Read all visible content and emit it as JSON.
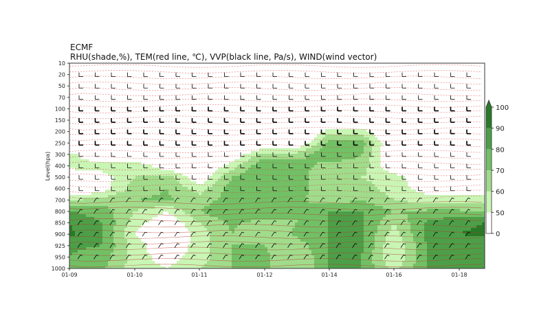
{
  "header": {
    "source": "ECMF",
    "subtitle": "RHU(shade,%), TEM(red line, ℃), VVP(black line, Pa/s), WIND(wind vector)"
  },
  "chart_data": {
    "type": "heatmap",
    "title": "ECMF",
    "subtitle": "RHU(shade,%), TEM(red line, ℃), VVP(black line, Pa/s), WIND(wind vector)",
    "ylabel": "Level(hpa)",
    "xlabel": "",
    "y_levels": [
      10,
      20,
      50,
      70,
      100,
      150,
      200,
      250,
      300,
      400,
      500,
      600,
      700,
      800,
      850,
      900,
      925,
      950,
      1000
    ],
    "y_inverted": true,
    "x_tick_labels": [
      "01-09",
      "01-10",
      "01-11",
      "01-12",
      "01-14",
      "01-16",
      "01-18"
    ],
    "x_columns": [
      "01-09 00",
      "01-09 12",
      "01-10 00",
      "01-10 12",
      "01-11 00",
      "01-11 12",
      "01-12 00",
      "01-13 00",
      "01-14 00",
      "01-15 00",
      "01-16 00",
      "01-17 00",
      "01-18 00",
      "01-18 18"
    ],
    "rhu_percent": [
      [
        20,
        20,
        20,
        20,
        20,
        20,
        20,
        20,
        20,
        20,
        20,
        20,
        20,
        20
      ],
      [
        20,
        20,
        20,
        20,
        20,
        20,
        20,
        20,
        20,
        20,
        20,
        20,
        20,
        20
      ],
      [
        20,
        20,
        20,
        20,
        20,
        20,
        20,
        20,
        20,
        20,
        20,
        20,
        20,
        20
      ],
      [
        20,
        20,
        20,
        20,
        20,
        20,
        20,
        20,
        20,
        20,
        20,
        20,
        20,
        20
      ],
      [
        20,
        20,
        20,
        20,
        20,
        20,
        20,
        20,
        20,
        20,
        20,
        20,
        20,
        20
      ],
      [
        25,
        25,
        25,
        25,
        25,
        25,
        25,
        25,
        30,
        30,
        25,
        25,
        25,
        25
      ],
      [
        25,
        25,
        25,
        25,
        25,
        25,
        25,
        30,
        55,
        55,
        30,
        25,
        25,
        25
      ],
      [
        30,
        30,
        30,
        30,
        30,
        30,
        35,
        35,
        75,
        75,
        35,
        30,
        30,
        30
      ],
      [
        55,
        35,
        30,
        30,
        30,
        40,
        65,
        65,
        80,
        70,
        35,
        30,
        30,
        30
      ],
      [
        55,
        55,
        60,
        40,
        35,
        55,
        80,
        75,
        65,
        65,
        40,
        35,
        30,
        30
      ],
      [
        35,
        45,
        60,
        65,
        40,
        70,
        80,
        75,
        60,
        60,
        55,
        40,
        35,
        35
      ],
      [
        30,
        45,
        65,
        70,
        55,
        75,
        80,
        75,
        60,
        65,
        55,
        45,
        40,
        40
      ],
      [
        60,
        65,
        70,
        72,
        65,
        75,
        80,
        72,
        65,
        70,
        60,
        55,
        55,
        55
      ],
      [
        80,
        75,
        60,
        50,
        70,
        80,
        80,
        70,
        80,
        80,
        70,
        72,
        72,
        70
      ],
      [
        90,
        80,
        55,
        40,
        60,
        72,
        65,
        70,
        80,
        82,
        60,
        82,
        88,
        90
      ],
      [
        92,
        80,
        50,
        35,
        55,
        70,
        62,
        72,
        80,
        82,
        55,
        82,
        90,
        92
      ],
      [
        82,
        80,
        55,
        40,
        55,
        70,
        70,
        65,
        80,
        82,
        50,
        80,
        82,
        82
      ],
      [
        80,
        75,
        55,
        45,
        55,
        70,
        72,
        60,
        80,
        80,
        50,
        80,
        80,
        80
      ],
      [
        80,
        72,
        55,
        50,
        60,
        70,
        72,
        60,
        80,
        80,
        55,
        80,
        80,
        80
      ]
    ],
    "colorbar": {
      "ticks": [
        0,
        50,
        60,
        70,
        80,
        90,
        100
      ],
      "bins": [
        {
          "from": 0,
          "to": 50,
          "color": "#ffffff"
        },
        {
          "from": 50,
          "to": 60,
          "color": "#c9f5b5"
        },
        {
          "from": 60,
          "to": 70,
          "color": "#a0dc8c"
        },
        {
          "from": 70,
          "to": 80,
          "color": "#72c066"
        },
        {
          "from": 80,
          "to": 90,
          "color": "#4c9f48"
        },
        {
          "from": 90,
          "to": 100,
          "color": "#287a28"
        }
      ],
      "extend": "max"
    },
    "colors": {
      "temperature_line": "#e03030",
      "vvp_line": "#3a3aff",
      "wind": "#000000"
    }
  }
}
